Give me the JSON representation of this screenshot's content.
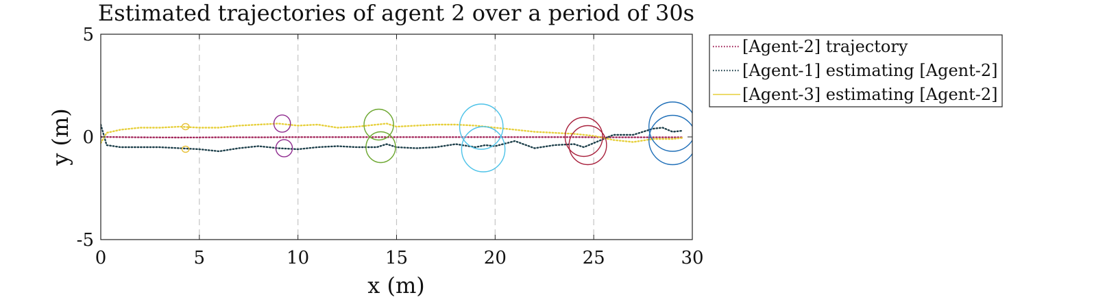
{
  "chart_data": {
    "type": "line",
    "title": "Estimated trajectories of agent 2 over a period of 30s",
    "xlabel": "x (m)",
    "ylabel": "y (m)",
    "xlim": [
      0,
      30
    ],
    "ylim": [
      -5,
      5
    ],
    "xticks": [
      0,
      5,
      10,
      15,
      20,
      25,
      30
    ],
    "xtick_labels": [
      "0",
      "5",
      "10",
      "15",
      "20",
      "25",
      "30"
    ],
    "yticks": [
      -5,
      0,
      5
    ],
    "ytick_labels": [
      "-5",
      "0",
      "5"
    ],
    "grid": "vertical dashed lines at x ticks",
    "legend_position": "outside top-right",
    "series": [
      {
        "name": "[Agent-2] trajectory",
        "color": "#a2265a",
        "style": "dotted",
        "x": [
          0,
          2,
          4,
          6,
          8,
          10,
          12,
          14,
          16,
          18,
          20,
          22,
          24,
          26,
          28,
          29.5
        ],
        "y": [
          0.0,
          -0.02,
          -0.03,
          -0.02,
          -0.02,
          -0.01,
          -0.01,
          -0.01,
          -0.01,
          -0.01,
          -0.01,
          -0.01,
          -0.01,
          -0.02,
          -0.02,
          -0.02
        ]
      },
      {
        "name": "[Agent-1] estimating [Agent-2]",
        "color": "#1d3f4a",
        "style": "dotted",
        "x": [
          0,
          0.3,
          1,
          2,
          3,
          4,
          5,
          6,
          7,
          8,
          9,
          10,
          11,
          12,
          13,
          14,
          14.5,
          15,
          16,
          17,
          18,
          19,
          19.5,
          20,
          21,
          22,
          23,
          24,
          24.5,
          25,
          26,
          27,
          28,
          28.5,
          29,
          29.5
        ],
        "y": [
          0.6,
          -0.4,
          -0.5,
          -0.5,
          -0.5,
          -0.55,
          -0.6,
          -0.7,
          -0.55,
          -0.45,
          -0.55,
          -0.6,
          -0.5,
          -0.45,
          -0.5,
          -0.5,
          -0.35,
          -0.5,
          -0.55,
          -0.5,
          -0.35,
          -0.5,
          -0.4,
          -0.45,
          -0.2,
          -0.55,
          -0.4,
          -0.35,
          -0.5,
          -0.3,
          0.1,
          0.1,
          0.4,
          0.45,
          0.25,
          0.3
        ]
      },
      {
        "name": "[Agent-3] estimating [Agent-2]",
        "color": "#e6cf3a",
        "style": "dotted",
        "x": [
          0,
          0.3,
          1,
          2,
          3,
          4,
          5,
          6,
          7,
          8,
          9,
          10,
          11,
          12,
          13,
          14,
          14.5,
          15,
          16,
          17,
          18,
          19,
          20,
          21,
          22,
          23,
          24,
          25,
          26,
          27,
          28,
          29,
          29.5
        ],
        "y": [
          -0.3,
          0.2,
          0.35,
          0.45,
          0.45,
          0.5,
          0.45,
          0.45,
          0.55,
          0.6,
          0.65,
          0.55,
          0.6,
          0.45,
          0.5,
          0.6,
          0.65,
          0.5,
          0.55,
          0.6,
          0.6,
          0.55,
          0.45,
          0.35,
          0.25,
          0.2,
          0.15,
          0.05,
          -0.15,
          -0.25,
          -0.1,
          -0.1,
          -0.05
        ]
      }
    ],
    "uncertainty_ellipses": [
      {
        "x": 4.3,
        "y": 0.5,
        "rx": 0.18,
        "ry": 0.15,
        "color": "#e8c13a"
      },
      {
        "x": 4.3,
        "y": -0.6,
        "rx": 0.18,
        "ry": 0.15,
        "color": "#e8c13a"
      },
      {
        "x": 9.2,
        "y": 0.65,
        "rx": 0.42,
        "ry": 0.42,
        "color": "#8e2a8e"
      },
      {
        "x": 9.3,
        "y": -0.55,
        "rx": 0.42,
        "ry": 0.42,
        "color": "#8e2a8e"
      },
      {
        "x": 14.1,
        "y": 0.6,
        "rx": 0.75,
        "ry": 0.75,
        "color": "#6ea832"
      },
      {
        "x": 14.2,
        "y": -0.5,
        "rx": 0.75,
        "ry": 0.75,
        "color": "#6ea832"
      },
      {
        "x": 19.3,
        "y": 0.5,
        "rx": 1.1,
        "ry": 1.1,
        "color": "#4cc2e8"
      },
      {
        "x": 19.4,
        "y": -0.6,
        "rx": 1.1,
        "ry": 1.1,
        "color": "#4cc2e8"
      },
      {
        "x": 24.5,
        "y": 0.0,
        "rx": 0.95,
        "ry": 0.95,
        "color": "#a8203c"
      },
      {
        "x": 24.7,
        "y": -0.4,
        "rx": 0.95,
        "ry": 0.95,
        "color": "#a8203c"
      },
      {
        "x": 29.0,
        "y": 0.5,
        "rx": 1.2,
        "ry": 1.2,
        "color": "#1f6fb8"
      },
      {
        "x": 29.0,
        "y": -0.15,
        "rx": 1.2,
        "ry": 1.2,
        "color": "#1f6fb8"
      }
    ]
  }
}
